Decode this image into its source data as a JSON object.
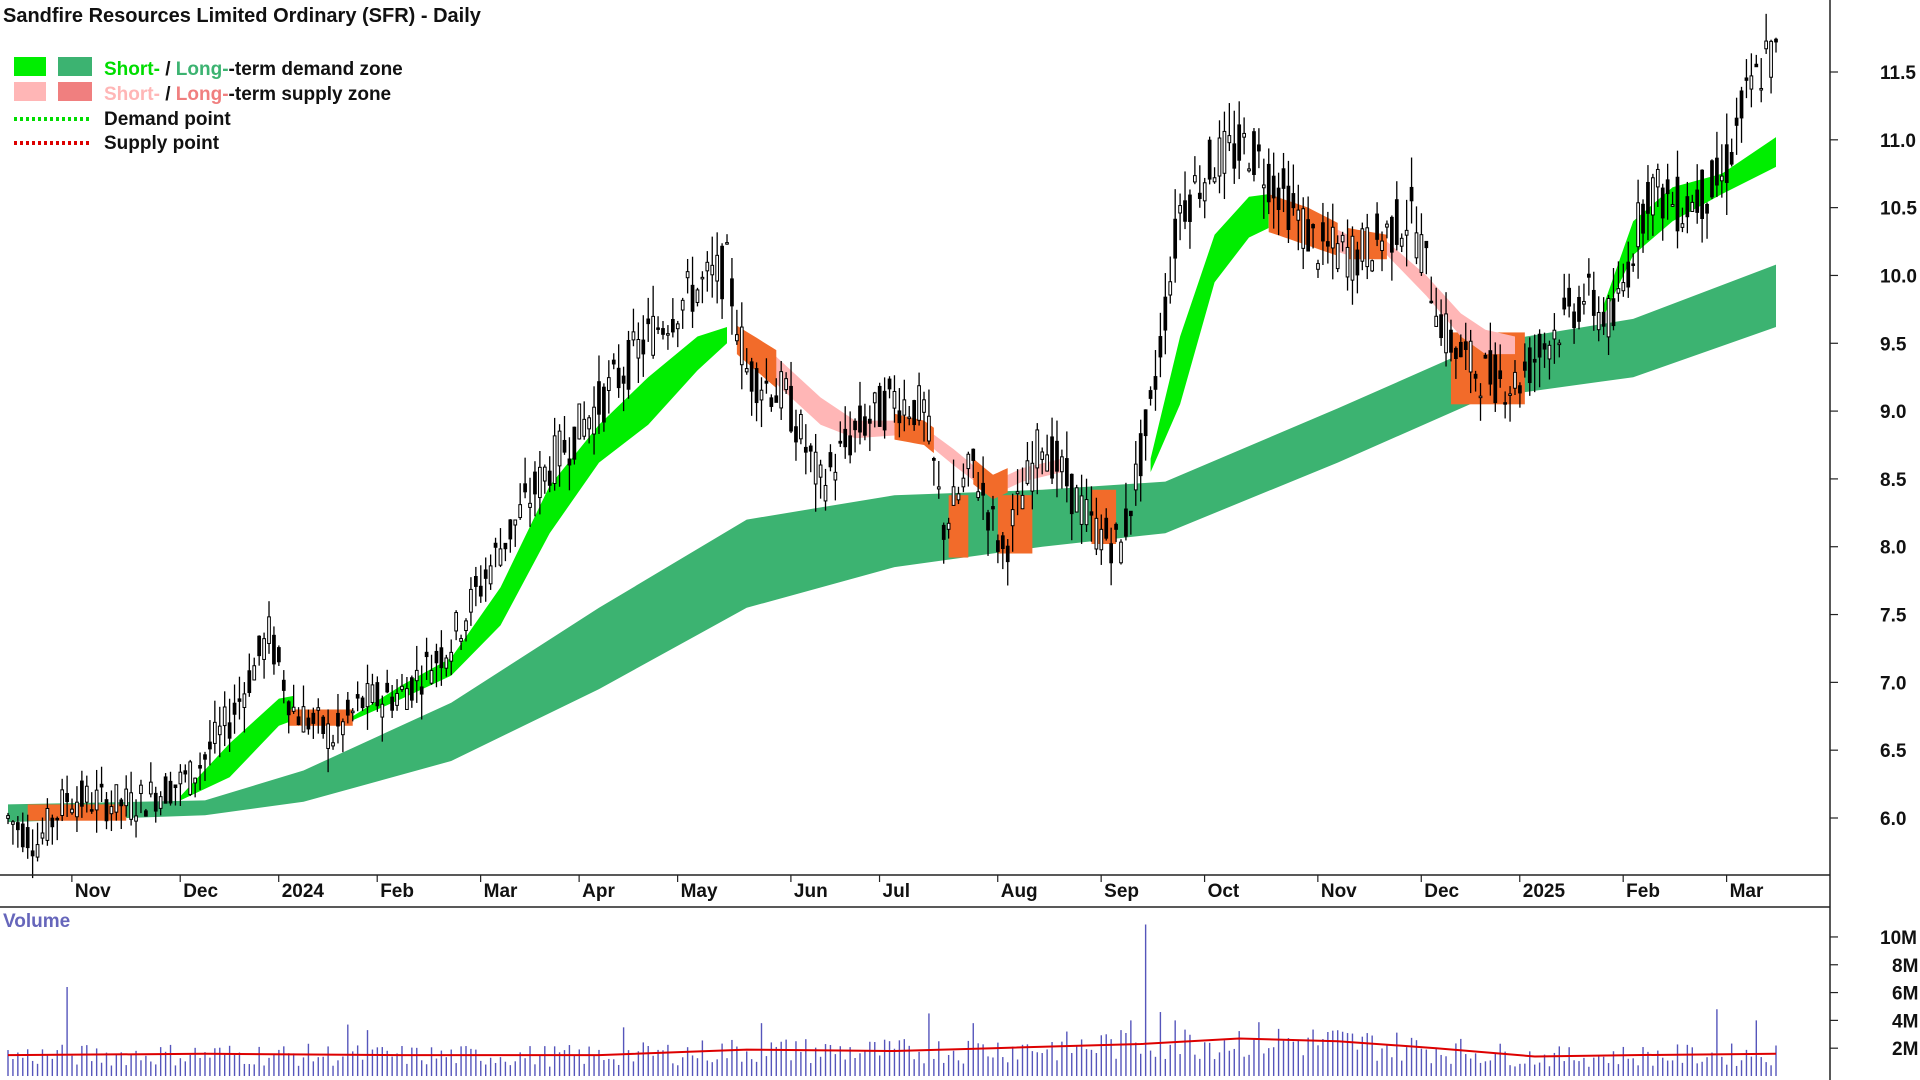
{
  "chart_data": {
    "type": "candlestick",
    "title": "Sandfire Resources Limited Ordinary (SFR) - Daily",
    "legend": {
      "placement": "top-left",
      "zone_demand": {
        "short": "Short-",
        "sep": " / ",
        "long": "Long-",
        "rest": "-term demand zone"
      },
      "zone_supply": {
        "short": "Short-",
        "sep": " / ",
        "long": "Long-",
        "rest": "-term supply zone"
      },
      "demand_point": "Demand point",
      "supply_point": "Supply point"
    },
    "x_ticks": [
      "Nov",
      "Dec",
      "2024",
      "Feb",
      "Mar",
      "Apr",
      "May",
      "Jun",
      "Jul",
      "Aug",
      "Sep",
      "Oct",
      "Nov",
      "Dec",
      "2025",
      "Feb",
      "Mar"
    ],
    "y_ticks": [
      "6.0",
      "6.5",
      "7.0",
      "7.5",
      "8.0",
      "8.5",
      "9.0",
      "9.5",
      "10.0",
      "10.5",
      "11.0",
      "11.5"
    ],
    "ylim": [
      5.5,
      11.9
    ],
    "x_domain": [
      0,
      359
    ],
    "x_tick_positions": [
      15,
      37,
      57,
      77,
      98,
      118,
      138,
      161,
      179,
      203,
      224,
      245,
      268,
      289,
      309,
      330,
      351
    ],
    "price_path": [
      [
        0,
        6.0
      ],
      [
        6,
        5.82
      ],
      [
        12,
        6.15
      ],
      [
        25,
        6.1
      ],
      [
        37,
        6.3
      ],
      [
        45,
        6.72
      ],
      [
        53,
        7.35
      ],
      [
        58,
        6.8
      ],
      [
        66,
        6.6
      ],
      [
        72,
        6.85
      ],
      [
        80,
        6.92
      ],
      [
        90,
        7.3
      ],
      [
        100,
        8.0
      ],
      [
        110,
        8.6
      ],
      [
        120,
        9.05
      ],
      [
        130,
        9.55
      ],
      [
        138,
        9.85
      ],
      [
        146,
        10.05
      ],
      [
        150,
        9.3
      ],
      [
        158,
        9.1
      ],
      [
        165,
        8.45
      ],
      [
        172,
        8.85
      ],
      [
        180,
        9.1
      ],
      [
        186,
        9.0
      ],
      [
        190,
        8.15
      ],
      [
        196,
        8.6
      ],
      [
        202,
        7.95
      ],
      [
        210,
        8.8
      ],
      [
        220,
        8.15
      ],
      [
        226,
        8.0
      ],
      [
        232,
        9.0
      ],
      [
        238,
        10.5
      ],
      [
        245,
        10.85
      ],
      [
        252,
        10.95
      ],
      [
        258,
        10.65
      ],
      [
        266,
        10.2
      ],
      [
        274,
        10.15
      ],
      [
        285,
        10.45
      ],
      [
        292,
        9.55
      ],
      [
        298,
        9.3
      ],
      [
        306,
        9.2
      ],
      [
        312,
        9.5
      ],
      [
        320,
        9.85
      ],
      [
        326,
        9.65
      ],
      [
        333,
        10.65
      ],
      [
        340,
        10.5
      ],
      [
        348,
        10.7
      ],
      [
        352,
        11.2
      ],
      [
        357,
        11.6
      ]
    ],
    "long_term_demand_zone": {
      "upper": [
        [
          0,
          6.1
        ],
        [
          40,
          6.13
        ],
        [
          60,
          6.35
        ],
        [
          90,
          6.85
        ],
        [
          120,
          7.55
        ],
        [
          150,
          8.2
        ],
        [
          180,
          8.38
        ],
        [
          210,
          8.42
        ],
        [
          235,
          8.48
        ],
        [
          270,
          9.02
        ],
        [
          300,
          9.5
        ],
        [
          330,
          9.68
        ],
        [
          359,
          10.08
        ]
      ],
      "lower": [
        [
          0,
          5.97
        ],
        [
          40,
          6.02
        ],
        [
          60,
          6.12
        ],
        [
          90,
          6.42
        ],
        [
          120,
          6.95
        ],
        [
          150,
          7.55
        ],
        [
          180,
          7.85
        ],
        [
          210,
          8.0
        ],
        [
          235,
          8.1
        ],
        [
          270,
          8.62
        ],
        [
          300,
          9.1
        ],
        [
          330,
          9.25
        ],
        [
          359,
          9.62
        ]
      ]
    },
    "short_term_demand_zone": [
      {
        "upper": [
          [
            35,
            6.16
          ],
          [
            45,
            6.55
          ],
          [
            55,
            6.88
          ],
          [
            58,
            6.9
          ]
        ],
        "lower": [
          [
            35,
            6.13
          ],
          [
            45,
            6.3
          ],
          [
            55,
            6.68
          ],
          [
            58,
            6.72
          ]
        ]
      },
      {
        "upper": [
          [
            70,
            6.75
          ],
          [
            80,
            6.98
          ],
          [
            90,
            7.18
          ],
          [
            100,
            7.7
          ],
          [
            110,
            8.45
          ],
          [
            120,
            8.9
          ],
          [
            130,
            9.25
          ],
          [
            140,
            9.55
          ],
          [
            146,
            9.62
          ]
        ],
        "lower": [
          [
            70,
            6.72
          ],
          [
            80,
            6.88
          ],
          [
            90,
            7.05
          ],
          [
            100,
            7.42
          ],
          [
            110,
            8.1
          ],
          [
            120,
            8.62
          ],
          [
            130,
            8.9
          ],
          [
            140,
            9.3
          ],
          [
            146,
            9.5
          ]
        ]
      },
      {
        "upper": [
          [
            232,
            8.65
          ],
          [
            238,
            9.55
          ],
          [
            245,
            10.3
          ],
          [
            252,
            10.58
          ],
          [
            256,
            10.6
          ]
        ],
        "lower": [
          [
            232,
            8.55
          ],
          [
            238,
            9.05
          ],
          [
            245,
            9.95
          ],
          [
            252,
            10.28
          ],
          [
            256,
            10.35
          ]
        ]
      },
      {
        "upper": [
          [
            324,
            9.78
          ],
          [
            330,
            10.4
          ],
          [
            338,
            10.65
          ],
          [
            348,
            10.75
          ],
          [
            359,
            11.02
          ]
        ],
        "lower": [
          [
            324,
            9.7
          ],
          [
            330,
            10.15
          ],
          [
            338,
            10.4
          ],
          [
            348,
            10.6
          ],
          [
            359,
            10.8
          ]
        ]
      }
    ],
    "short_term_supply_zone": [
      {
        "upper": [
          [
            148,
            9.58
          ],
          [
            156,
            9.4
          ],
          [
            165,
            9.1
          ],
          [
            172,
            8.93
          ],
          [
            180,
            8.93
          ],
          [
            186,
            8.88
          ],
          [
            192,
            8.72
          ],
          [
            200,
            8.48
          ],
          [
            206,
            8.58
          ],
          [
            214,
            8.65
          ]
        ],
        "lower": [
          [
            148,
            9.45
          ],
          [
            156,
            9.2
          ],
          [
            165,
            8.9
          ],
          [
            172,
            8.8
          ],
          [
            180,
            8.82
          ],
          [
            186,
            8.78
          ],
          [
            192,
            8.6
          ],
          [
            200,
            8.38
          ],
          [
            206,
            8.48
          ],
          [
            214,
            8.55
          ]
        ]
      },
      {
        "upper": [
          [
            256,
            10.55
          ],
          [
            264,
            10.45
          ],
          [
            272,
            10.3
          ],
          [
            280,
            10.25
          ],
          [
            288,
            10.0
          ],
          [
            295,
            9.72
          ],
          [
            300,
            9.6
          ],
          [
            306,
            9.55
          ]
        ],
        "lower": [
          [
            256,
            10.35
          ],
          [
            264,
            10.25
          ],
          [
            272,
            10.15
          ],
          [
            280,
            10.15
          ],
          [
            288,
            9.85
          ],
          [
            295,
            9.55
          ],
          [
            300,
            9.42
          ],
          [
            306,
            9.42
          ]
        ]
      }
    ],
    "long_term_supply_zone": [
      {
        "x": [
          191,
          195
        ],
        "y": [
          7.92,
          8.38
        ]
      },
      {
        "x": [
          201,
          208
        ],
        "y": [
          7.95,
          8.38
        ]
      },
      {
        "x": [
          220,
          225
        ],
        "y": [
          8.02,
          8.42
        ]
      },
      {
        "x": [
          293,
          308
        ],
        "y": [
          9.05,
          9.58
        ]
      }
    ],
    "volume": {
      "title": "Volume",
      "y_ticks": [
        "10M",
        "8M",
        "6M",
        "4M",
        "2M"
      ],
      "ylim": [
        0,
        11000000
      ],
      "average_path": [
        [
          0,
          1.5
        ],
        [
          40,
          1.6
        ],
        [
          80,
          1.5
        ],
        [
          120,
          1.5
        ],
        [
          150,
          1.9
        ],
        [
          180,
          1.8
        ],
        [
          200,
          2.0
        ],
        [
          230,
          2.3
        ],
        [
          250,
          2.7
        ],
        [
          270,
          2.5
        ],
        [
          290,
          2.0
        ],
        [
          310,
          1.4
        ],
        [
          330,
          1.5
        ],
        [
          359,
          1.6
        ]
      ],
      "spikes": [
        [
          12,
          6.4
        ],
        [
          69,
          3.7
        ],
        [
          73,
          3.3
        ],
        [
          125,
          3.5
        ],
        [
          153,
          3.8
        ],
        [
          160,
          2.5
        ],
        [
          187,
          4.5
        ],
        [
          196,
          3.8
        ],
        [
          223,
          3.0
        ],
        [
          228,
          4.0
        ],
        [
          231,
          10.9
        ],
        [
          234,
          4.6
        ],
        [
          237,
          4.0
        ],
        [
          347,
          4.8
        ],
        [
          355,
          4.0
        ]
      ]
    },
    "colors": {
      "short_demand": "#00ee00",
      "long_demand": "#3cb371",
      "short_supply": "#ffb6b6",
      "long_supply": "#f07f7f",
      "supply_fill": "#f26b2a",
      "demand_point": "#00dd00",
      "supply_point": "#dd0000",
      "volume_bar": "#5555bb",
      "volume_avg": "#dd0000",
      "axis": "#222222"
    }
  }
}
